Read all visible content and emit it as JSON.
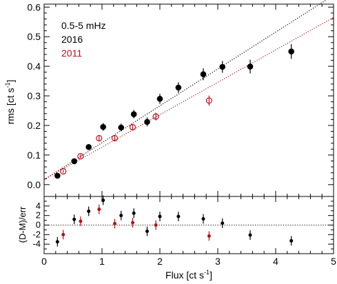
{
  "chart_data": [
    {
      "type": "scatter",
      "panel": "top",
      "ylabel_main": "rms [ct s",
      "ylabel_sup": "-1",
      "ylabel_end": "]",
      "xlim": [
        0,
        5
      ],
      "ylim": [
        -0.04,
        0.61
      ],
      "yticks": [
        "0.0",
        "0.1",
        "0.2",
        "0.3",
        "0.4",
        "0.5",
        "0.6"
      ],
      "ytick_values": [
        0,
        0.1,
        0.2,
        0.3,
        0.4,
        0.5,
        0.6
      ],
      "annotations": [
        "0.5-5 mHz",
        "2016",
        "2011"
      ],
      "colors": {
        "black": "#000000",
        "red": "#b0121b"
      },
      "series": [
        {
          "name": "2016",
          "color": "#000000",
          "marker": "filled-circle",
          "x": [
            0.23,
            0.52,
            0.77,
            1.02,
            1.33,
            1.55,
            1.78,
            2.0,
            2.32,
            2.75,
            3.08,
            3.56,
            4.27
          ],
          "y": [
            0.03,
            0.079,
            0.127,
            0.195,
            0.193,
            0.238,
            0.212,
            0.29,
            0.328,
            0.373,
            0.398,
            0.399,
            0.45
          ],
          "yerr": [
            0.005,
            0.007,
            0.009,
            0.013,
            0.013,
            0.014,
            0.015,
            0.017,
            0.018,
            0.02,
            0.02,
            0.023,
            0.025
          ]
        },
        {
          "name": "2011",
          "color": "#b0121b",
          "marker": "open-circle",
          "x": [
            0.33,
            0.63,
            0.95,
            1.22,
            1.53,
            1.93,
            2.85
          ],
          "y": [
            0.045,
            0.096,
            0.157,
            0.157,
            0.194,
            0.23,
            0.284
          ],
          "yerr": [
            0.005,
            0.006,
            0.009,
            0.009,
            0.011,
            0.013,
            0.017
          ]
        }
      ],
      "fits": [
        {
          "color": "#000000",
          "style": "dotted",
          "x": [
            0,
            5
          ],
          "y": [
            0.017,
            0.64
          ]
        },
        {
          "color": "#b0121b",
          "style": "dotted",
          "x": [
            0,
            5
          ],
          "y": [
            0.017,
            0.565
          ]
        }
      ]
    },
    {
      "type": "scatter",
      "panel": "bottom",
      "xlabel_main": "Flux [ct s",
      "xlabel_sup": "-1",
      "xlabel_end": "]",
      "ylabel": "(D-M)/err",
      "xlim": [
        0,
        5
      ],
      "ylim": [
        -6,
        6
      ],
      "xticks": [
        "0",
        "1",
        "2",
        "3",
        "4",
        "5"
      ],
      "xtick_values": [
        0,
        1,
        2,
        3,
        4,
        5
      ],
      "yticks": [
        "-4",
        "-2",
        "0",
        "2",
        "4"
      ],
      "ytick_values": [
        -4,
        -2,
        0,
        2,
        4
      ],
      "zero_line": 0,
      "series": [
        {
          "name": "2016",
          "color": "#000000",
          "x": [
            0.23,
            0.52,
            0.77,
            1.02,
            1.33,
            1.55,
            1.78,
            2.0,
            2.32,
            2.75,
            3.08,
            3.56,
            4.27
          ],
          "y": [
            -3.5,
            1.2,
            2.9,
            5.2,
            2.0,
            2.5,
            -1.3,
            1.8,
            1.8,
            1.3,
            0.4,
            -2.1,
            -3.3
          ],
          "yerr": [
            1,
            1,
            1,
            1,
            1,
            1,
            1,
            1,
            1,
            1,
            1,
            1,
            1
          ]
        },
        {
          "name": "2011",
          "color": "#b0121b",
          "x": [
            0.33,
            0.63,
            0.95,
            1.22,
            1.53,
            1.93,
            2.85
          ],
          "y": [
            -2.0,
            0.8,
            3.3,
            0.3,
            0.5,
            0.0,
            -2.3
          ],
          "yerr": [
            1,
            1,
            1,
            1,
            1,
            1,
            1
          ]
        }
      ]
    }
  ]
}
